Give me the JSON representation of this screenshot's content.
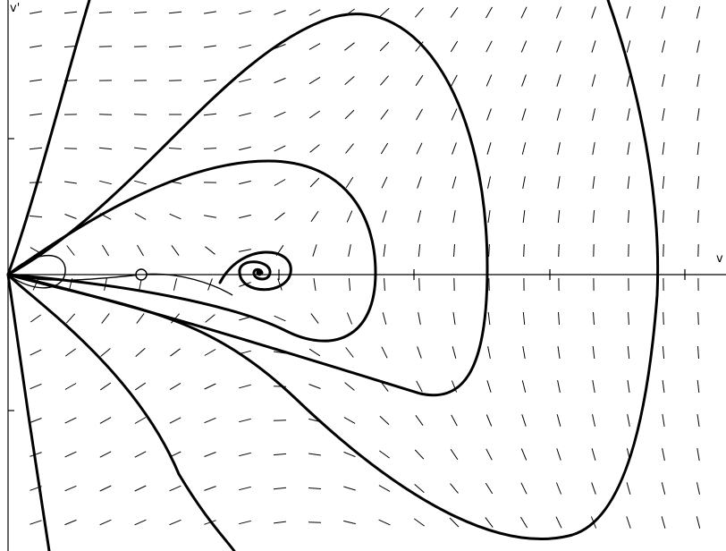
{
  "diagram": {
    "type": "phase-portrait",
    "axes": {
      "x_label": "v",
      "y_label": "v'"
    },
    "direction_field": {
      "visible": true,
      "style": "dashed-segments"
    },
    "equilibria": [
      {
        "kind": "saddle"
      },
      {
        "kind": "spiral"
      }
    ],
    "colors": {
      "background": "#ffffff",
      "ink": "#000000"
    }
  }
}
